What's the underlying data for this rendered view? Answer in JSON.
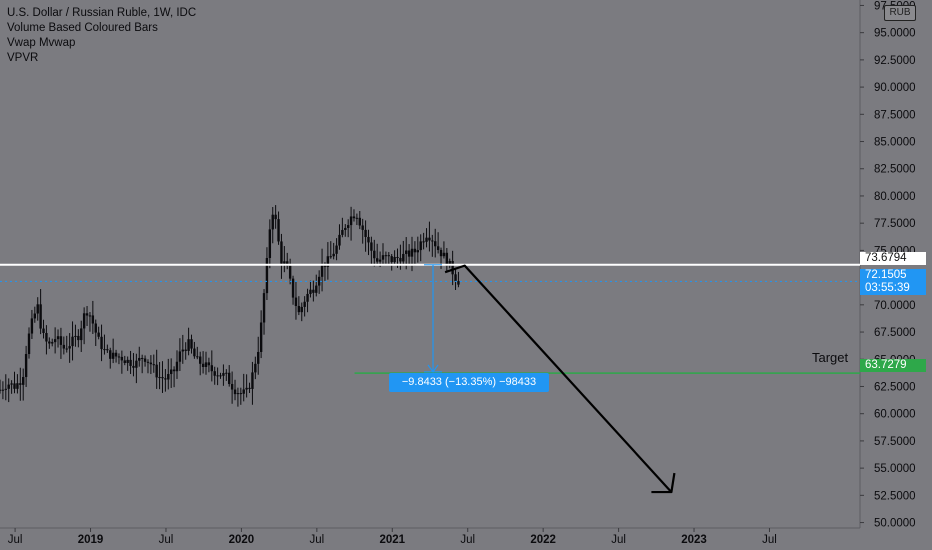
{
  "legend": {
    "title": "U.S. Dollar / Russian Ruble, 1W, IDC",
    "lines": [
      "Volume Based Coloured Bars",
      "Vwap Mvwap",
      "VPVR"
    ]
  },
  "currency_badge": "RUB",
  "price_tags": {
    "level": "73.6794",
    "current": "72.1505",
    "countdown": "03:55:39",
    "target": "63.7279"
  },
  "measure_label": "−9.8433 (−13.35%) −98433",
  "target_label": "Target",
  "colors": {
    "background": "#7b7b80",
    "bars": "#0b0b0e",
    "level_line": "#ffffff",
    "current_line": "#2196f3",
    "target_line": "#2ea84a",
    "measure": "#2196f3"
  },
  "chart_data": {
    "type": "candlestick",
    "title": "U.S. Dollar / Russian Ruble, 1W, IDC",
    "y_ticks": [
      "50.0000",
      "52.5000",
      "55.0000",
      "57.5000",
      "60.0000",
      "62.5000",
      "65.0000",
      "67.5000",
      "70.0000",
      "72.5000",
      "75.0000",
      "77.5000",
      "80.0000",
      "82.5000",
      "85.0000",
      "87.5000",
      "90.0000",
      "92.5000",
      "95.0000",
      "97.5000"
    ],
    "ylim": [
      49.5,
      98.0
    ],
    "x_ticks": [
      {
        "label": "Jul",
        "t": 2018.5
      },
      {
        "label": "2019",
        "t": 2019.0
      },
      {
        "label": "Jul",
        "t": 2019.5
      },
      {
        "label": "2020",
        "t": 2020.0
      },
      {
        "label": "Jul",
        "t": 2020.5
      },
      {
        "label": "2021",
        "t": 2021.0
      },
      {
        "label": "Jul",
        "t": 2021.5
      },
      {
        "label": "2022",
        "t": 2022.0
      },
      {
        "label": "Jul",
        "t": 2022.5
      },
      {
        "label": "2023",
        "t": 2023.0
      },
      {
        "label": "Jul",
        "t": 2023.5
      }
    ],
    "xlim": [
      2018.4,
      2024.1
    ],
    "price_path": [
      [
        2018.4,
        62.2
      ],
      [
        2018.45,
        62.8
      ],
      [
        2018.5,
        62.5
      ],
      [
        2018.55,
        63.3
      ],
      [
        2018.58,
        66.5
      ],
      [
        2018.62,
        68.8
      ],
      [
        2018.65,
        69.8
      ],
      [
        2018.68,
        67.3
      ],
      [
        2018.72,
        66.2
      ],
      [
        2018.77,
        67.0
      ],
      [
        2018.82,
        66.0
      ],
      [
        2018.87,
        66.5
      ],
      [
        2018.92,
        67.2
      ],
      [
        2018.97,
        69.6
      ],
      [
        2019.0,
        69.0
      ],
      [
        2019.05,
        66.8
      ],
      [
        2019.1,
        65.6
      ],
      [
        2019.15,
        65.3
      ],
      [
        2019.2,
        65.2
      ],
      [
        2019.25,
        64.8
      ],
      [
        2019.3,
        64.6
      ],
      [
        2019.35,
        65.3
      ],
      [
        2019.4,
        64.6
      ],
      [
        2019.45,
        63.4
      ],
      [
        2019.5,
        63.2
      ],
      [
        2019.55,
        63.8
      ],
      [
        2019.6,
        65.8
      ],
      [
        2019.65,
        66.4
      ],
      [
        2019.7,
        64.9
      ],
      [
        2019.75,
        64.5
      ],
      [
        2019.8,
        64.0
      ],
      [
        2019.85,
        63.7
      ],
      [
        2019.9,
        63.4
      ],
      [
        2019.95,
        62.3
      ],
      [
        2020.0,
        61.8
      ],
      [
        2020.04,
        62.0
      ],
      [
        2020.07,
        63.4
      ],
      [
        2020.12,
        66.5
      ],
      [
        2020.17,
        74.0
      ],
      [
        2020.2,
        79.0
      ],
      [
        2020.23,
        77.5
      ],
      [
        2020.26,
        74.2
      ],
      [
        2020.3,
        73.5
      ],
      [
        2020.34,
        71.0
      ],
      [
        2020.38,
        69.2
      ],
      [
        2020.43,
        70.8
      ],
      [
        2020.48,
        71.6
      ],
      [
        2020.53,
        73.5
      ],
      [
        2020.58,
        74.1
      ],
      [
        2020.63,
        75.3
      ],
      [
        2020.68,
        77.1
      ],
      [
        2020.72,
        78.0
      ],
      [
        2020.76,
        78.5
      ],
      [
        2020.8,
        77.1
      ],
      [
        2020.85,
        75.3
      ],
      [
        2020.9,
        74.0
      ],
      [
        2020.95,
        74.4
      ],
      [
        2021.0,
        74.1
      ],
      [
        2021.05,
        74.4
      ],
      [
        2021.1,
        74.6
      ],
      [
        2021.15,
        74.9
      ],
      [
        2021.2,
        76.0
      ],
      [
        2021.23,
        76.6
      ],
      [
        2021.27,
        76.0
      ],
      [
        2021.3,
        75.2
      ],
      [
        2021.34,
        74.5
      ],
      [
        2021.38,
        73.6
      ],
      [
        2021.42,
        72.5
      ],
      [
        2021.44,
        72.2
      ]
    ],
    "level": 73.6794,
    "current": 72.1505,
    "target": 63.7279,
    "measure": {
      "from": 73.6794,
      "to": 63.8361,
      "t": 2021.27
    },
    "forecast_path": [
      [
        2021.35,
        73.0
      ],
      [
        2021.48,
        73.6
      ],
      [
        2022.85,
        52.8
      ]
    ]
  }
}
